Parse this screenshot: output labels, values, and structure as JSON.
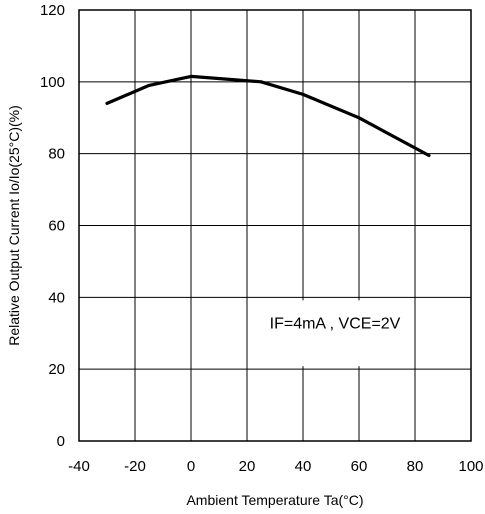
{
  "chart_data": {
    "type": "line",
    "xlabel": "Ambient Temperature Ta(°C)",
    "ylabel": "Relative Output Current Io/Io(25°C)(%)",
    "xlim": [
      -40,
      100
    ],
    "ylim": [
      0,
      120
    ],
    "x_ticks": [
      "-40",
      "-20",
      "0",
      "20",
      "40",
      "60",
      "80",
      "100"
    ],
    "y_ticks": [
      "0",
      "20",
      "40",
      "60",
      "80",
      "100",
      "120"
    ],
    "grid": true,
    "annotation": "IF=4mA , VCE=2V",
    "series": [
      {
        "x": [
          -30,
          -15,
          0,
          25,
          40,
          60,
          85
        ],
        "y": [
          94,
          99,
          101.5,
          100,
          96.5,
          90,
          79.5
        ]
      }
    ]
  }
}
